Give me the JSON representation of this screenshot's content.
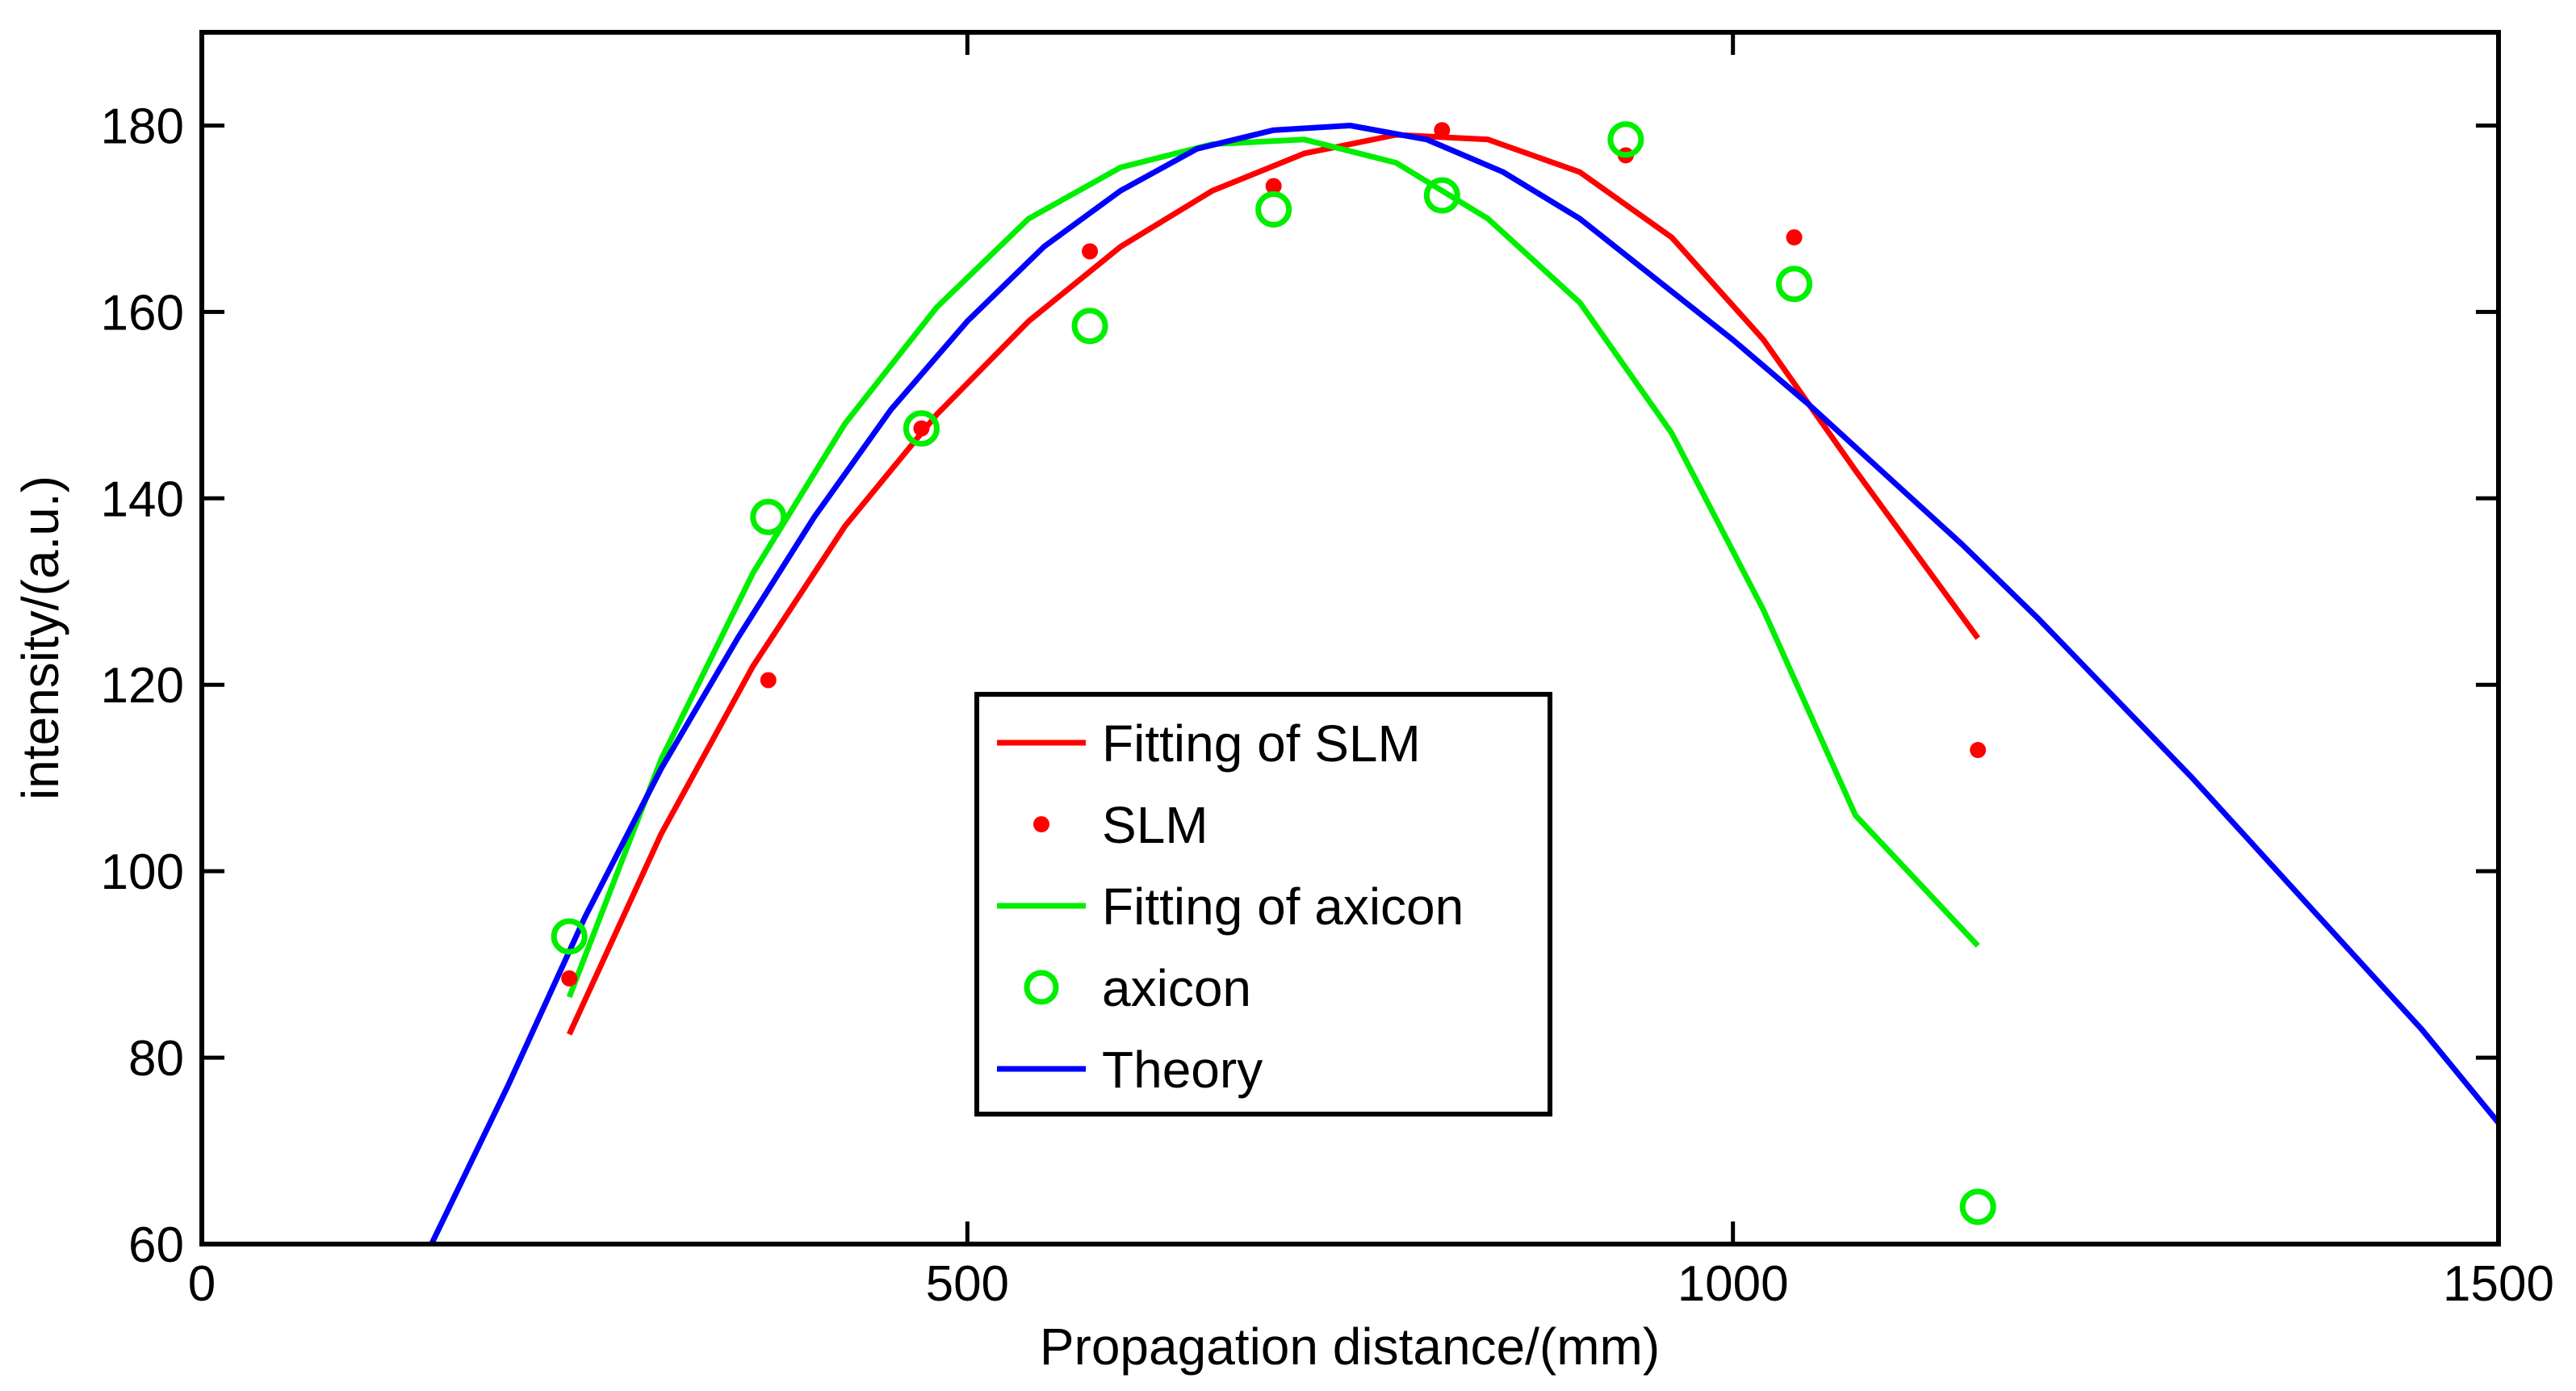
{
  "chart_data": {
    "type": "line",
    "title": "",
    "xlabel": "Propagation distance/(mm)",
    "ylabel": "intensity/(a.u.)",
    "xlim": [
      0,
      1500
    ],
    "ylim": [
      60,
      190
    ],
    "xticks": [
      0,
      500,
      1000,
      1500
    ],
    "yticks": [
      60,
      80,
      100,
      120,
      140,
      160,
      180
    ],
    "grid": false,
    "legend_position": "center",
    "colors": {
      "slm": "#ff0000",
      "axicon": "#00ee00",
      "theory": "#0000ff"
    },
    "legend": [
      {
        "label": "Fitting of SLM",
        "style": "line",
        "color": "#ff0000"
      },
      {
        "label": "SLM",
        "style": "dot",
        "color": "#ff0000"
      },
      {
        "label": "Fitting of axicon",
        "style": "line",
        "color": "#00ee00"
      },
      {
        "label": "axicon",
        "style": "circle",
        "color": "#00ee00"
      },
      {
        "label": "Theory",
        "style": "line",
        "color": "#0000ff"
      }
    ],
    "series": [
      {
        "name": "Fitting of SLM",
        "style": "line",
        "color": "#ff0000",
        "x": [
          240,
          300,
          360,
          420,
          480,
          540,
          600,
          660,
          720,
          780,
          840,
          900,
          960,
          1020,
          1080,
          1160
        ],
        "y": [
          82.5,
          104,
          122,
          137,
          149,
          159,
          167,
          173,
          177,
          179,
          178.5,
          175,
          168,
          157,
          143,
          125
        ]
      },
      {
        "name": "SLM",
        "style": "dot",
        "color": "#ff0000",
        "x": [
          240,
          370,
          470,
          580,
          700,
          810,
          930,
          1040,
          1160
        ],
        "y": [
          88.5,
          120.5,
          147.5,
          166.5,
          173.5,
          179.5,
          176.8,
          168,
          113
        ]
      },
      {
        "name": "Fitting of axicon",
        "style": "line",
        "color": "#00ee00",
        "x": [
          240,
          300,
          360,
          420,
          480,
          540,
          600,
          660,
          720,
          780,
          840,
          900,
          960,
          1020,
          1080,
          1160
        ],
        "y": [
          86.5,
          112,
          132,
          148,
          160.5,
          170,
          175.5,
          178,
          178.5,
          176,
          170,
          161,
          147,
          128,
          106,
          92
        ]
      },
      {
        "name": "axicon",
        "style": "circle",
        "color": "#00ee00",
        "x": [
          240,
          370,
          470,
          580,
          700,
          810,
          930,
          1040,
          1160
        ],
        "y": [
          93,
          138,
          147.5,
          158.5,
          171,
          172.5,
          178.5,
          163,
          64
        ]
      },
      {
        "name": "Theory",
        "style": "line",
        "color": "#0000ff",
        "x": [
          150,
          200,
          250,
          300,
          350,
          400,
          450,
          500,
          550,
          600,
          650,
          700,
          750,
          800,
          850,
          900,
          950,
          1000,
          1050,
          1100,
          1150,
          1200,
          1250,
          1300,
          1350,
          1400,
          1450,
          1500
        ],
        "y": [
          60,
          77,
          95,
          111,
          125,
          138,
          149.5,
          159,
          167,
          173,
          177.5,
          179.5,
          180,
          178.5,
          175,
          170,
          163.5,
          157,
          150,
          142.5,
          135,
          127,
          118.5,
          110,
          101,
          92,
          83,
          73
        ]
      }
    ]
  }
}
